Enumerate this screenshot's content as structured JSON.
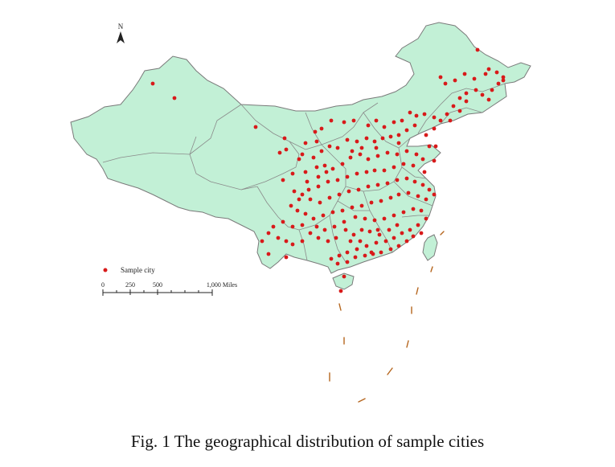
{
  "north_label": "N",
  "legend": {
    "label": "Sample city",
    "marker_color": "#d81a1a"
  },
  "scale_bar": {
    "ticks": [
      "0",
      "250",
      "500",
      "1,000 Miles"
    ]
  },
  "caption": "Fig. 1 The geographical distribution of sample cities",
  "colors": {
    "land": "#c2f0d6",
    "city": "#d81a1a",
    "dashed_line": "#b5651d",
    "border": "#7a7a7a"
  }
}
